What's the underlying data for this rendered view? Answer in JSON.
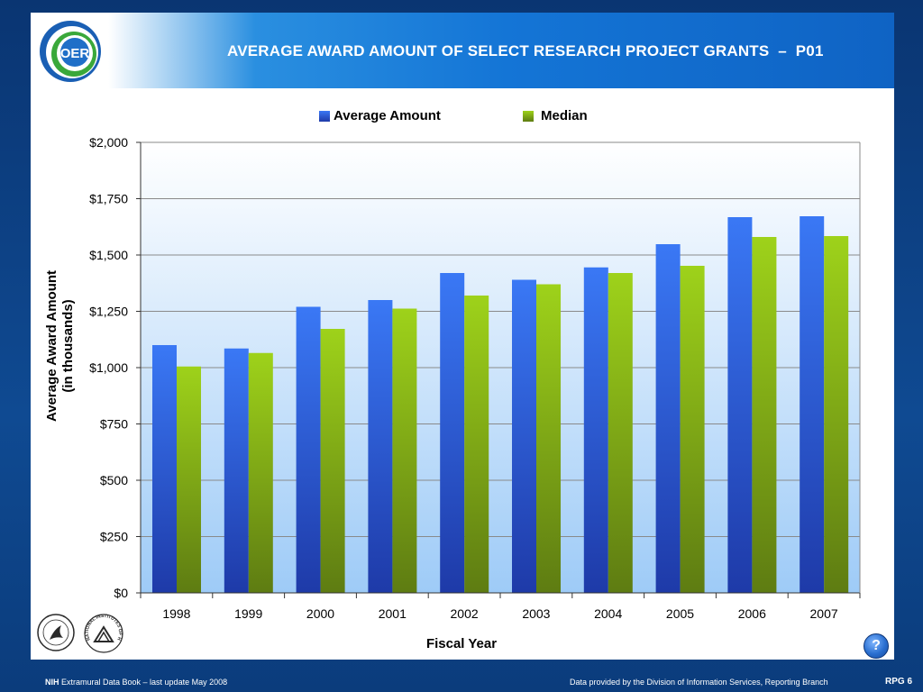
{
  "slide": {
    "title": "AVERAGE AWARD AMOUNT OF SELECT RESEARCH PROJECT GRANTS  –  P01",
    "logo_text": "OER"
  },
  "footer": {
    "left_bold": "NIH",
    "left_text": " Extramural Data Book – last update May 2008",
    "right_text": "Data provided by the Division of Information Services, Reporting Branch",
    "page_label": "RPG 6",
    "help_symbol": "?"
  },
  "icons": {
    "hhs_seal": "hhs-seal-icon",
    "nih_seal": "nih-seal-icon",
    "nih_seal_text": "NATIONAL INSTITUTES OF HEALTH",
    "help": "help-icon"
  },
  "colors": {
    "avg_top": "#3a78f5",
    "avg_bottom": "#1e3aa8",
    "median_top": "#9ed21a",
    "median_bottom": "#5e7c12",
    "plot_top": "#ffffff",
    "plot_bottom": "#9ecbf7"
  },
  "chart_data": {
    "type": "bar",
    "title": "",
    "xlabel": "Fiscal Year",
    "ylabel": "Average Award Amount",
    "ylabel2": "(in thousands)",
    "categories": [
      "1998",
      "1999",
      "2000",
      "2001",
      "2002",
      "2003",
      "2004",
      "2005",
      "2006",
      "2007"
    ],
    "series": [
      {
        "name": "Average Amount",
        "values": [
          1100,
          1085,
          1270,
          1300,
          1420,
          1390,
          1445,
          1548,
          1668,
          1672
        ]
      },
      {
        "name": "Median",
        "values": [
          1005,
          1065,
          1172,
          1262,
          1320,
          1370,
          1420,
          1452,
          1580,
          1584
        ]
      }
    ],
    "ylim": [
      0,
      2000
    ],
    "yticks": [
      0,
      250,
      500,
      750,
      1000,
      1250,
      1500,
      1750,
      2000
    ],
    "ytick_labels": [
      "$0",
      "$250",
      "$500",
      "$750",
      "$1,000",
      "$1,250",
      "$1,500",
      "$1,750",
      "$2,000"
    ],
    "grid": true,
    "legend_position": "top"
  }
}
